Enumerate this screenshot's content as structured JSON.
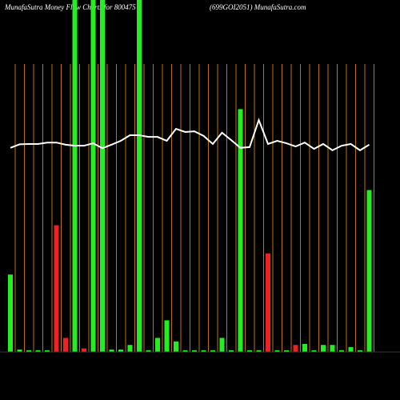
{
  "chart_data": {
    "type": "bar",
    "title": "MunafaSutra  Money Flow  Charts for 800475",
    "subtitle": "(699GOI2051) MunafaSutra.com",
    "ylim": [
      0,
      100
    ],
    "values": [
      22,
      0.7,
      0.5,
      0.5,
      0.5,
      36,
      4,
      100,
      1,
      100,
      100,
      0.7,
      0.7,
      2,
      100,
      0.5,
      4,
      9,
      3,
      0.5,
      0.5,
      0.5,
      0.5,
      4,
      0.5,
      69,
      0.5,
      0.5,
      28,
      0.5,
      0.5,
      2,
      2.3,
      0.5,
      2,
      2,
      0.5,
      1.4,
      0.5,
      46
    ],
    "colors": [
      "#22ee22",
      "#22ee22",
      "#22ee22",
      "#22ee22",
      "#22ee22",
      "#ee2222",
      "#ee2222",
      "#22ee22",
      "#ee2222",
      "#22ee22",
      "#22ee22",
      "#22ee22",
      "#22ee22",
      "#22ee22",
      "#22ee22",
      "#22ee22",
      "#22ee22",
      "#22ee22",
      "#22ee22",
      "#22ee22",
      "#22ee22",
      "#22ee22",
      "#22ee22",
      "#22ee22",
      "#22ee22",
      "#22ee22",
      "#22ee22",
      "#22ee22",
      "#ee2222",
      "#22ee22",
      "#22ee22",
      "#ee2222",
      "#22ee22",
      "#22ee22",
      "#22ee22",
      "#22ee22",
      "#22ee22",
      "#22ee22",
      "#22ee22",
      "#22ee22"
    ],
    "line": {
      "color": "#ffffff",
      "values": [
        58,
        59,
        59.1,
        59.1,
        59.5,
        59.5,
        58.9,
        58.6,
        58.6,
        59.3,
        57.9,
        58.9,
        60,
        61.6,
        61.6,
        61.1,
        61.1,
        60,
        63.4,
        62.5,
        62.7,
        61.4,
        59.1,
        62.3,
        60.2,
        58,
        58.2,
        65.9,
        59.1,
        60,
        59.3,
        58.4,
        59.5,
        57.7,
        59.1,
        57.3,
        58.6,
        59.1,
        57.3,
        58.9
      ]
    }
  }
}
